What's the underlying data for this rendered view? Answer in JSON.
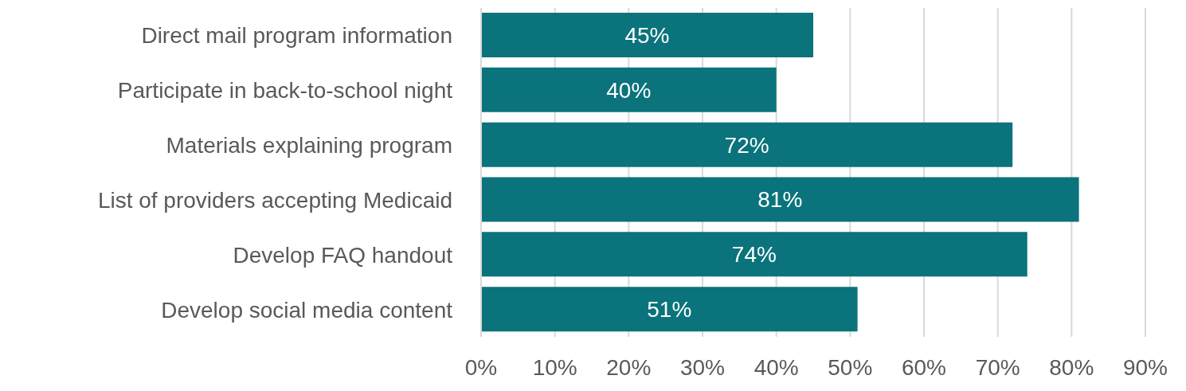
{
  "chart_data": {
    "type": "bar",
    "orientation": "horizontal",
    "categories": [
      "Direct mail program information",
      "Participate in back-to-school night",
      "Materials explaining program",
      "List of providers accepting Medicaid",
      "Develop FAQ handout",
      "Develop social media content"
    ],
    "values": [
      45,
      40,
      72,
      81,
      74,
      51
    ],
    "color": "#0a737c",
    "xlim": [
      0,
      90
    ],
    "xticks": [
      {
        "value": 0,
        "label": "0%"
      },
      {
        "value": 10,
        "label": "10%"
      },
      {
        "value": 20,
        "label": "20%"
      },
      {
        "value": 30,
        "label": "30%"
      },
      {
        "value": 40,
        "label": "40%"
      },
      {
        "value": 50,
        "label": "50%"
      },
      {
        "value": 60,
        "label": "60%"
      },
      {
        "value": 70,
        "label": "70%"
      },
      {
        "value": 80,
        "label": "80%"
      },
      {
        "value": 90,
        "label": "90%"
      }
    ],
    "value_labels": [
      "45%",
      "40%",
      "72%",
      "81%",
      "74%",
      "51%"
    ],
    "grid": "x"
  }
}
